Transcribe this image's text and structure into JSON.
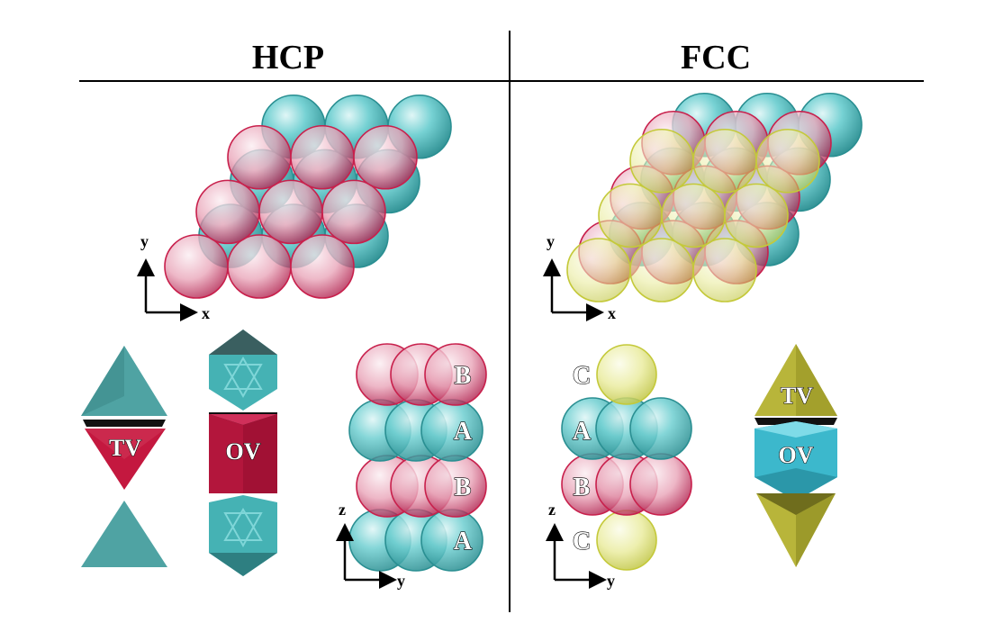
{
  "panels": {
    "hcp": {
      "title": "HCP",
      "axes_top": {
        "x": "x",
        "y": "y"
      },
      "axes_stack": {
        "y": "y",
        "z": "z"
      },
      "void_labels": {
        "tetrahedral": "TV",
        "octahedral": "OV"
      },
      "stack_layers": [
        "B",
        "A",
        "B",
        "A"
      ]
    },
    "fcc": {
      "title": "FCC",
      "axes_top": {
        "x": "x",
        "y": "y"
      },
      "axes_stack": {
        "y": "y",
        "z": "z"
      },
      "void_labels": {
        "tetrahedral": "TV",
        "octahedral": "OV"
      },
      "stack_layers": [
        "C",
        "A",
        "B",
        "C"
      ]
    }
  },
  "colors": {
    "layer_A": "#3fb4b6",
    "layer_B": "#cc2450",
    "layer_C": "#d4d84a",
    "tetra_hcp": "#4fa3a3",
    "octa_hcp": "#c4183f",
    "void_fcc_tv": "#b8b53a",
    "void_fcc_ov": "#3cb8cc"
  }
}
